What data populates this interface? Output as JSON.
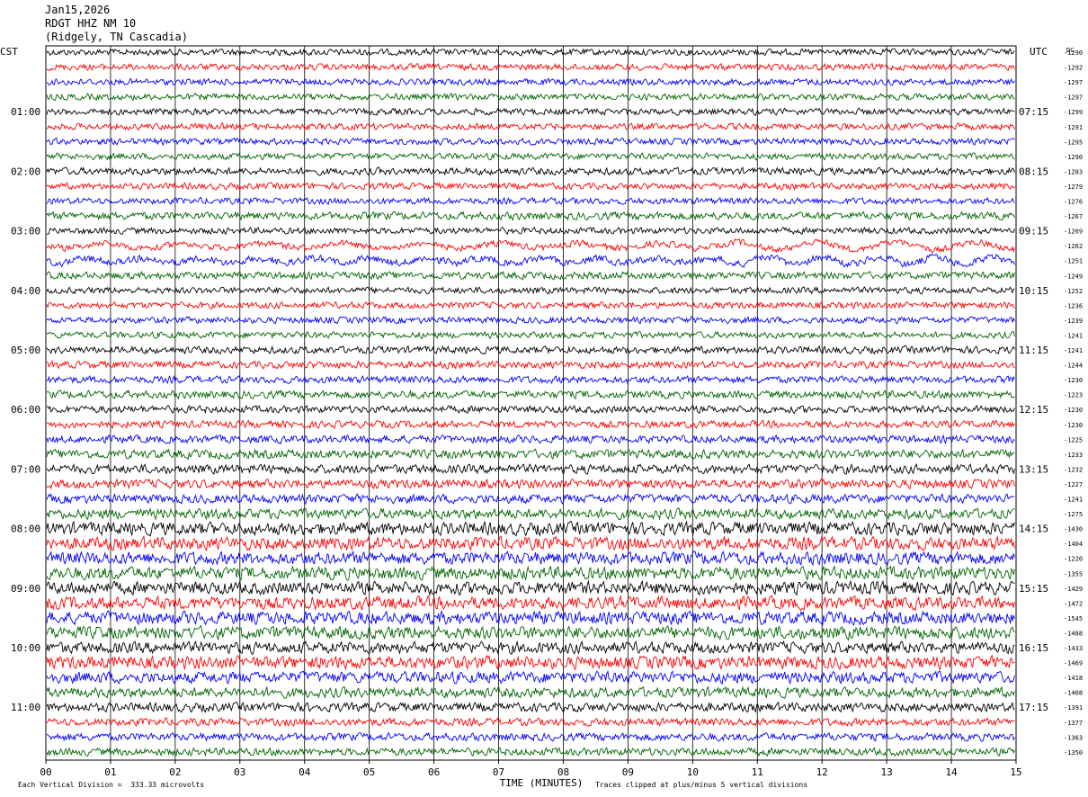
{
  "header": {
    "date": "Jan15,2026",
    "station": "RDGT HHZ NM 10",
    "location": "(Ridgely, TN Cascadia)"
  },
  "axes": {
    "left_zone": "CST",
    "right_zone": "UTC",
    "dc_label": "DC",
    "xlabel": "TIME (MINUTES)"
  },
  "footer": {
    "scale_note": "Each Vertical Division =  333.33 microvolts",
    "clip_note": "Traces clipped at plus/minus 5 vertical divisions"
  },
  "colors": {
    "trace_cycle": [
      "#000000",
      "#ff0000",
      "#0000ff",
      "#006400"
    ],
    "grid": "#000000"
  },
  "chart_data": {
    "type": "line",
    "title": "RDGT HHZ NM 10",
    "xlabel": "TIME (MINUTES)",
    "xlim": [
      0,
      15
    ],
    "x_ticks": [
      "00",
      "01",
      "02",
      "03",
      "04",
      "05",
      "06",
      "07",
      "08",
      "09",
      "10",
      "11",
      "12",
      "13",
      "14",
      "15"
    ],
    "left_hour_labels": [
      "01:00",
      "02:00",
      "03:00",
      "04:00",
      "05:00",
      "06:00",
      "07:00",
      "08:00",
      "09:00",
      "10:00",
      "11:00"
    ],
    "right_hour_labels": [
      "07:15",
      "08:15",
      "09:15",
      "10:15",
      "11:15",
      "12:15",
      "13:15",
      "14:15",
      "15:15",
      "16:15",
      "17:15"
    ],
    "dc_offsets": [
      -1290,
      -1292,
      -1297,
      -1297,
      -1299,
      -1291,
      -1295,
      -1290,
      -1283,
      -1279,
      -1276,
      -1267,
      -1269,
      -1262,
      -1251,
      -1249,
      -1252,
      -1236,
      -1239,
      -1241,
      -1241,
      -1244,
      -1230,
      -1223,
      -1230,
      -1230,
      -1225,
      -1233,
      -1232,
      -1227,
      -1241,
      -1275,
      -1430,
      -1404,
      -1220,
      -1355,
      -1429,
      -1472,
      -1545,
      -1488,
      -1433,
      -1469,
      -1418,
      -1408,
      -1391,
      -1377,
      -1363,
      -1350
    ],
    "trace_amplitude_divisions": [
      2.5,
      2.5,
      2.5,
      2.5,
      2.5,
      2.5,
      2.5,
      2.5,
      2.8,
      2.5,
      2.5,
      3,
      2.5,
      2.5,
      2.8,
      2.8,
      2.5,
      2.5,
      2.5,
      2.5,
      2.8,
      2.8,
      2.8,
      3,
      2.8,
      2.8,
      3,
      3.5,
      3.5,
      3.5,
      3.5,
      4,
      6,
      7,
      8,
      8,
      7,
      6,
      6,
      5,
      4.5,
      5,
      4.5,
      4,
      3.5,
      3,
      3,
      3
    ],
    "traces_clipped_at_divisions": 5
  }
}
